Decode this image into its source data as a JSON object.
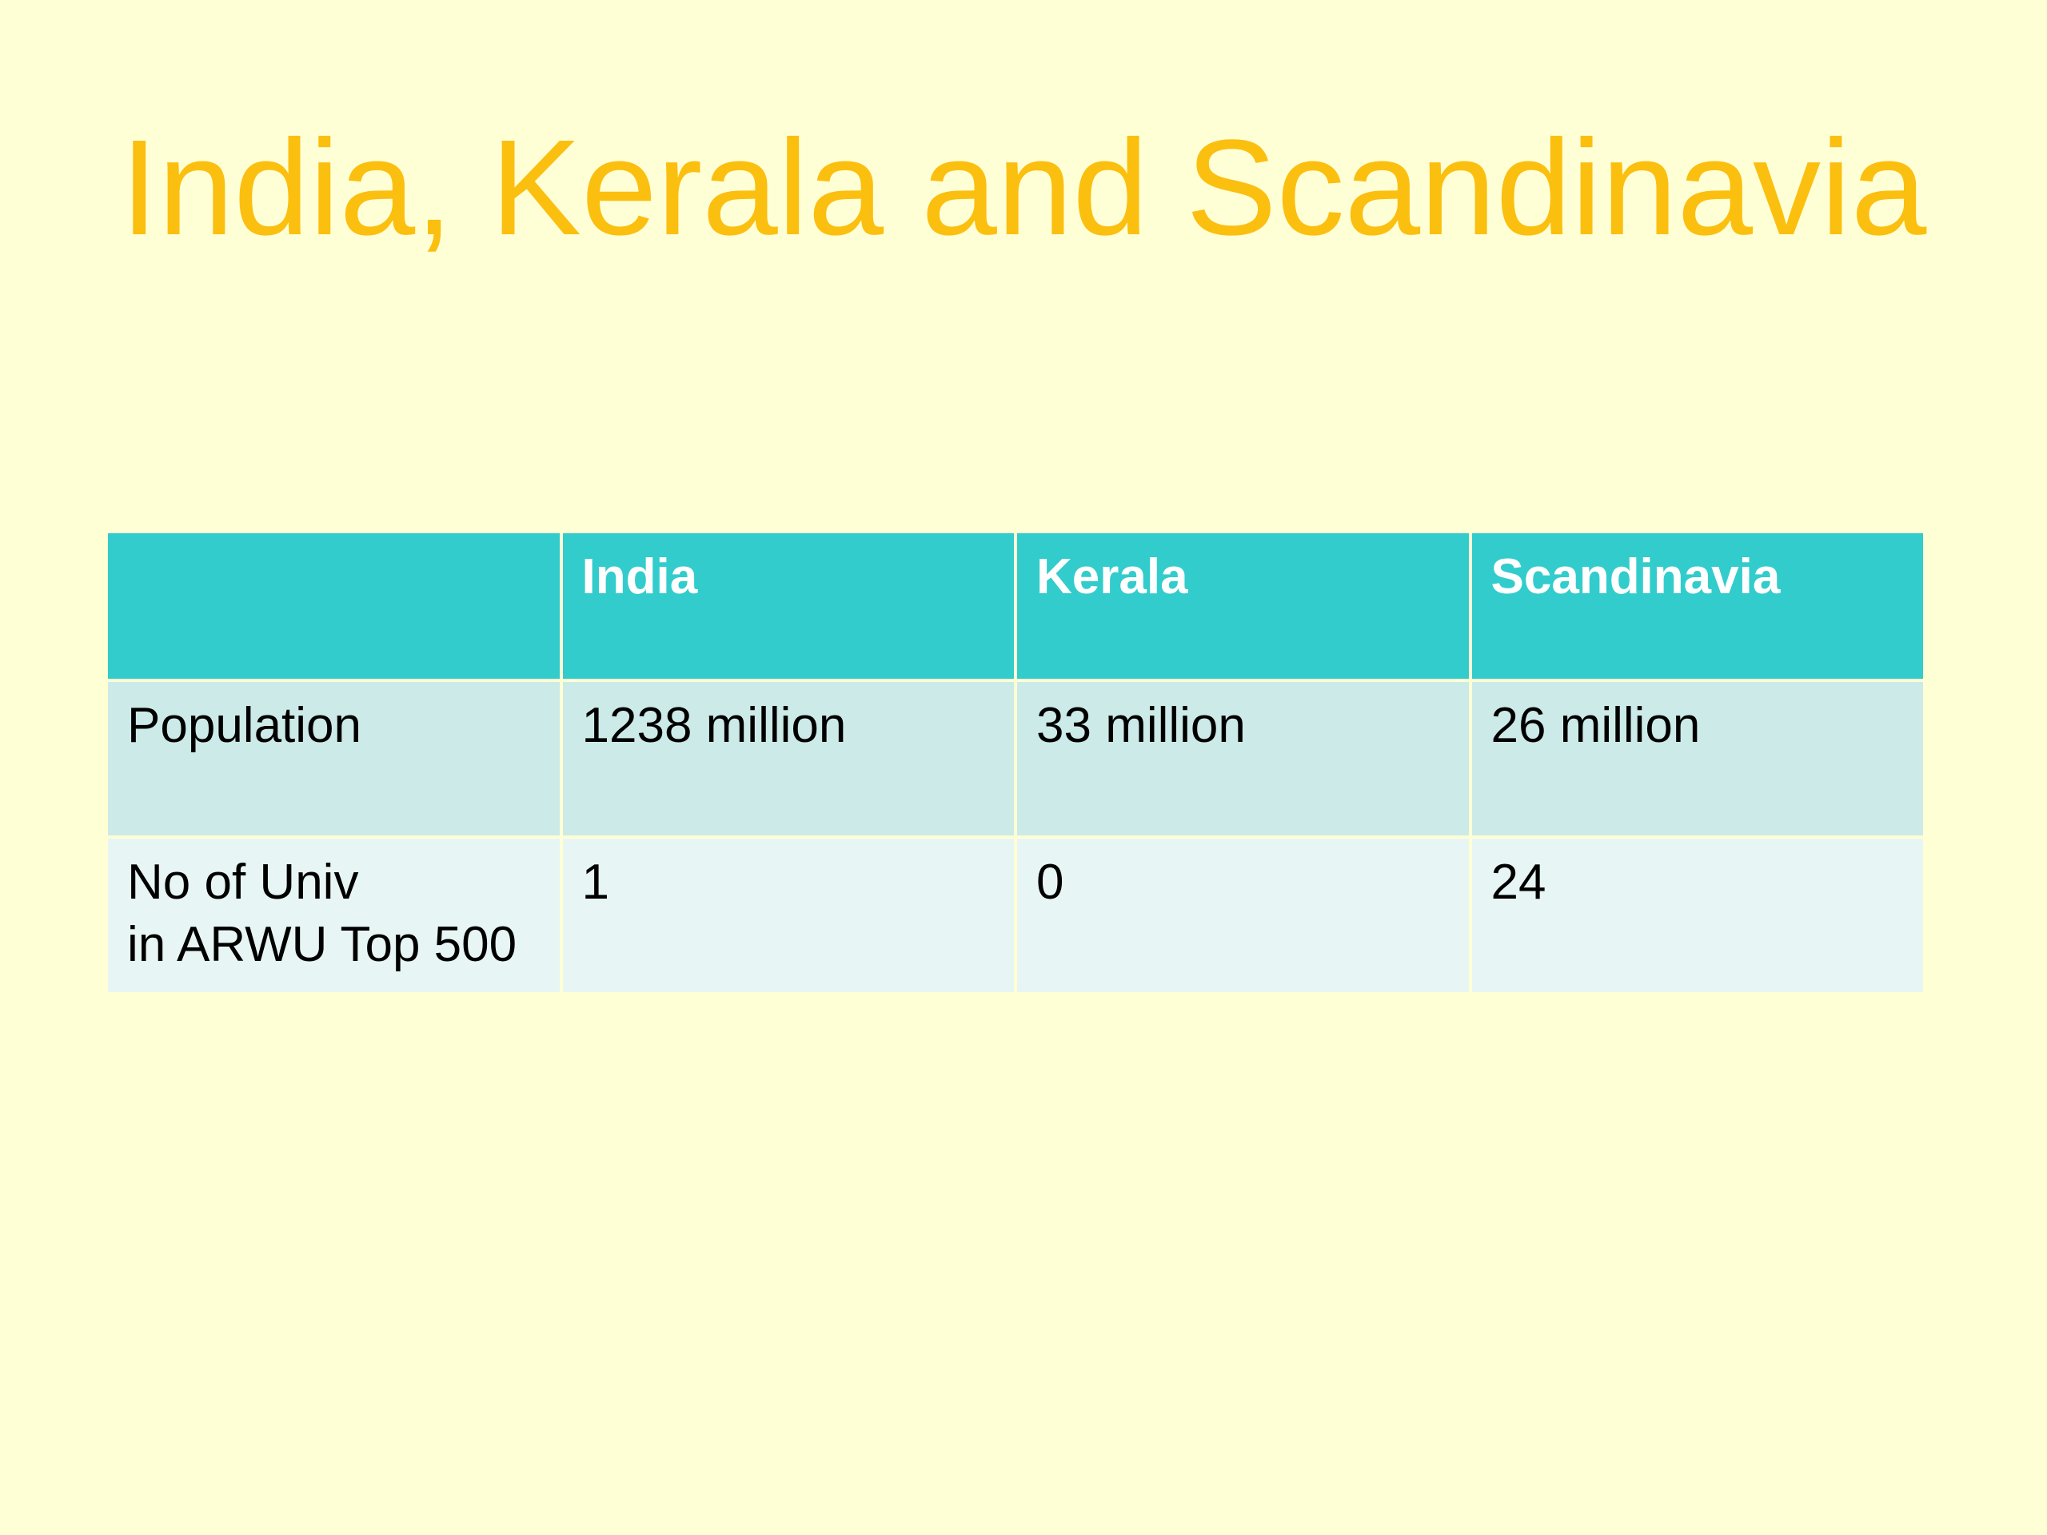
{
  "title": "India, Kerala and Scandinavia",
  "table": {
    "header": [
      "India",
      "Kerala",
      "Scandinavia"
    ],
    "rows": [
      [
        "Population",
        "1238 million",
        "33 million",
        "26 million"
      ],
      [
        "No of Univ\nin ARWU Top 500",
        1,
        0,
        24
      ]
    ]
  }
}
